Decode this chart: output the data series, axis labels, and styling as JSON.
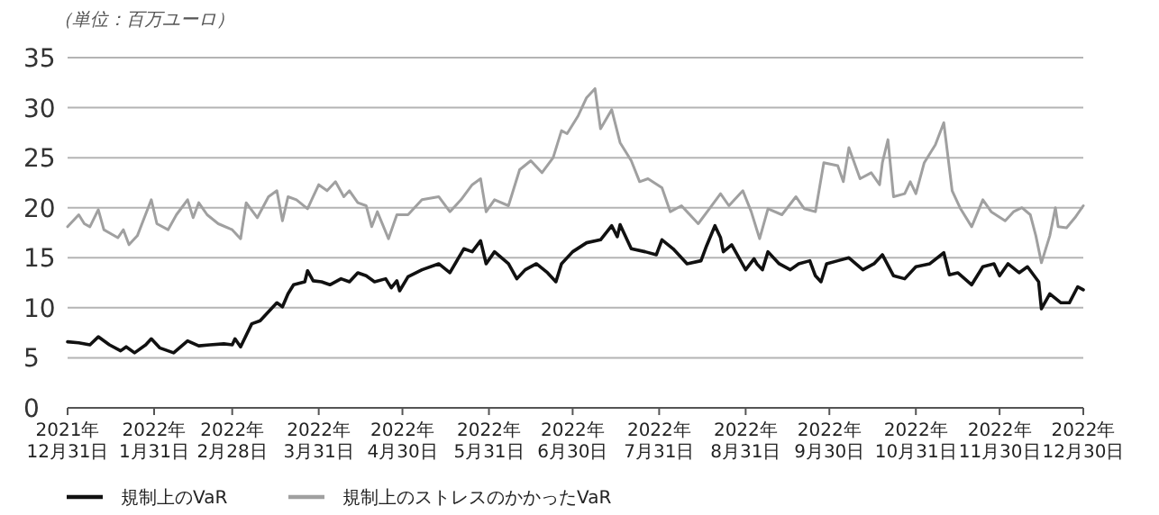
{
  "chart_data": {
    "type": "line",
    "annotations": [
      "（単位：百万ユーロ）"
    ],
    "xlim": [
      "2021-12-31",
      "2022-12-30"
    ],
    "xticks": [
      {
        "value": "2021-12-31",
        "label": "2021年\n12月31日"
      },
      {
        "value": "2022-01-31",
        "label": "2022年\n1月31日"
      },
      {
        "value": "2022-02-28",
        "label": "2022年\n2月28日"
      },
      {
        "value": "2022-03-31",
        "label": "2022年\n3月31日"
      },
      {
        "value": "2022-04-30",
        "label": "2022年\n4月30日"
      },
      {
        "value": "2022-05-31",
        "label": "2022年\n5月31日"
      },
      {
        "value": "2022-06-30",
        "label": "2022年\n6月30日"
      },
      {
        "value": "2022-07-31",
        "label": "2022年\n7月31日"
      },
      {
        "value": "2022-08-31",
        "label": "2022年\n8月31日"
      },
      {
        "value": "2022-09-30",
        "label": "2022年\n9月30日"
      },
      {
        "value": "2022-10-31",
        "label": "2022年\n10月31日"
      },
      {
        "value": "2022-11-30",
        "label": "2022年\n11月30日"
      },
      {
        "value": "2022-12-30",
        "label": "2022年\n12月30日"
      }
    ],
    "ylim": [
      0,
      35
    ],
    "yticks": [
      0,
      5,
      10,
      15,
      20,
      25,
      30,
      35
    ],
    "grid": "y",
    "legend": "bottom left",
    "series": [
      {
        "name": "規制上のVaR",
        "color": "#111111",
        "x": [
          "2021-12-31",
          "2022-01-04",
          "2022-01-08",
          "2022-01-11",
          "2022-01-15",
          "2022-01-19",
          "2022-01-21",
          "2022-01-24",
          "2022-01-28",
          "2022-01-30",
          "2022-02-02",
          "2022-02-07",
          "2022-02-12",
          "2022-02-16",
          "2022-02-20",
          "2022-02-25",
          "2022-02-28",
          "2022-03-01",
          "2022-03-03",
          "2022-03-07",
          "2022-03-10",
          "2022-03-13",
          "2022-03-16",
          "2022-03-18",
          "2022-03-20",
          "2022-03-22",
          "2022-03-26",
          "2022-03-27",
          "2022-03-29",
          "2022-04-01",
          "2022-04-04",
          "2022-04-08",
          "2022-04-11",
          "2022-04-14",
          "2022-04-17",
          "2022-04-20",
          "2022-04-24",
          "2022-04-26",
          "2022-04-28",
          "2022-04-29",
          "2022-05-02",
          "2022-05-07",
          "2022-05-13",
          "2022-05-17",
          "2022-05-22",
          "2022-05-25",
          "2022-05-28",
          "2022-05-30",
          "2022-06-02",
          "2022-06-07",
          "2022-06-10",
          "2022-06-13",
          "2022-06-17",
          "2022-06-21",
          "2022-06-24",
          "2022-06-26",
          "2022-06-30",
          "2022-07-05",
          "2022-07-10",
          "2022-07-14",
          "2022-07-16",
          "2022-07-17",
          "2022-07-21",
          "2022-07-26",
          "2022-07-30",
          "2022-08-01",
          "2022-08-05",
          "2022-08-10",
          "2022-08-15",
          "2022-08-17",
          "2022-08-20",
          "2022-08-22",
          "2022-08-23",
          "2022-08-26",
          "2022-08-31",
          "2022-09-03",
          "2022-09-04",
          "2022-09-06",
          "2022-09-08",
          "2022-09-12",
          "2022-09-16",
          "2022-09-19",
          "2022-09-23",
          "2022-09-25",
          "2022-09-27",
          "2022-09-29",
          "2022-10-03",
          "2022-10-07",
          "2022-10-12",
          "2022-10-16",
          "2022-10-19",
          "2022-10-23",
          "2022-10-27",
          "2022-10-31",
          "2022-11-05",
          "2022-11-10",
          "2022-11-12",
          "2022-11-15",
          "2022-11-20",
          "2022-11-24",
          "2022-11-28",
          "2022-11-30",
          "2022-12-03",
          "2022-12-07",
          "2022-12-10",
          "2022-12-14",
          "2022-12-15",
          "2022-12-18",
          "2022-12-22",
          "2022-12-25",
          "2022-12-28",
          "2022-12-30"
        ],
        "values": [
          6.6,
          6.5,
          6.3,
          7.1,
          6.3,
          5.7,
          6.1,
          5.5,
          6.3,
          6.9,
          6.0,
          5.5,
          6.7,
          6.2,
          6.3,
          6.4,
          6.3,
          6.9,
          6.1,
          8.4,
          8.7,
          9.6,
          10.5,
          10.1,
          11.4,
          12.3,
          12.6,
          13.7,
          12.7,
          12.6,
          12.3,
          12.9,
          12.6,
          13.5,
          13.2,
          12.6,
          12.9,
          12.0,
          12.7,
          11.7,
          13.1,
          13.8,
          14.4,
          13.5,
          15.9,
          15.6,
          16.7,
          14.4,
          15.6,
          14.4,
          12.9,
          13.8,
          14.4,
          13.5,
          12.6,
          14.4,
          15.6,
          16.5,
          16.8,
          18.2,
          17.1,
          18.3,
          15.9,
          15.6,
          15.3,
          16.8,
          15.9,
          14.4,
          14.7,
          16.2,
          18.2,
          17.0,
          15.6,
          16.3,
          13.8,
          14.9,
          14.4,
          13.8,
          15.6,
          14.4,
          13.8,
          14.4,
          14.7,
          13.2,
          12.6,
          14.4,
          14.7,
          15.0,
          13.8,
          14.4,
          15.3,
          13.2,
          12.9,
          14.1,
          14.4,
          15.5,
          13.3,
          13.5,
          12.3,
          14.1,
          14.4,
          13.2,
          14.4,
          13.5,
          14.1,
          12.6,
          9.9,
          11.4,
          10.5,
          10.5,
          12.1,
          11.8
        ]
      },
      {
        "name": "規制上のストレスのかかったVaR",
        "color": "#a0a0a0",
        "x": [
          "2021-12-31",
          "2022-01-04",
          "2022-01-06",
          "2022-01-08",
          "2022-01-11",
          "2022-01-13",
          "2022-01-18",
          "2022-01-20",
          "2022-01-22",
          "2022-01-25",
          "2022-01-30",
          "2022-02-01",
          "2022-02-05",
          "2022-02-08",
          "2022-02-12",
          "2022-02-14",
          "2022-02-16",
          "2022-02-19",
          "2022-02-23",
          "2022-02-28",
          "2022-03-03",
          "2022-03-05",
          "2022-03-09",
          "2022-03-13",
          "2022-03-16",
          "2022-03-18",
          "2022-03-20",
          "2022-03-23",
          "2022-03-27",
          "2022-03-29",
          "2022-03-31",
          "2022-04-03",
          "2022-04-06",
          "2022-04-09",
          "2022-04-11",
          "2022-04-14",
          "2022-04-17",
          "2022-04-19",
          "2022-04-21",
          "2022-04-25",
          "2022-04-28",
          "2022-05-02",
          "2022-05-07",
          "2022-05-13",
          "2022-05-17",
          "2022-05-21",
          "2022-05-25",
          "2022-05-28",
          "2022-05-30",
          "2022-06-02",
          "2022-06-07",
          "2022-06-11",
          "2022-06-15",
          "2022-06-19",
          "2022-06-23",
          "2022-06-26",
          "2022-06-28",
          "2022-07-02",
          "2022-07-05",
          "2022-07-08",
          "2022-07-10",
          "2022-07-14",
          "2022-07-17",
          "2022-07-21",
          "2022-07-24",
          "2022-07-27",
          "2022-08-01",
          "2022-08-04",
          "2022-08-08",
          "2022-08-14",
          "2022-08-18",
          "2022-08-22",
          "2022-08-25",
          "2022-08-30",
          "2022-09-02",
          "2022-09-05",
          "2022-09-08",
          "2022-09-13",
          "2022-09-18",
          "2022-09-21",
          "2022-09-25",
          "2022-09-28",
          "2022-10-03",
          "2022-10-05",
          "2022-10-07",
          "2022-10-11",
          "2022-10-15",
          "2022-10-18",
          "2022-10-19",
          "2022-10-21",
          "2022-10-23",
          "2022-10-27",
          "2022-10-29",
          "2022-10-31",
          "2022-11-03",
          "2022-11-07",
          "2022-11-10",
          "2022-11-13",
          "2022-11-16",
          "2022-11-20",
          "2022-11-24",
          "2022-11-27",
          "2022-12-02",
          "2022-12-05",
          "2022-12-08",
          "2022-12-11",
          "2022-12-13",
          "2022-12-15",
          "2022-12-18",
          "2022-12-20",
          "2022-12-21",
          "2022-12-24",
          "2022-12-27",
          "2022-12-30"
        ],
        "values": [
          18.1,
          19.3,
          18.4,
          18.1,
          19.8,
          17.8,
          17.0,
          17.8,
          16.3,
          17.2,
          20.8,
          18.4,
          17.8,
          19.3,
          20.8,
          19.0,
          20.5,
          19.3,
          18.4,
          17.8,
          16.9,
          20.5,
          19.0,
          21.1,
          21.7,
          18.7,
          21.1,
          20.8,
          19.9,
          21.1,
          22.3,
          21.7,
          22.6,
          21.1,
          21.7,
          20.5,
          20.2,
          18.1,
          19.6,
          16.9,
          19.3,
          19.3,
          20.8,
          21.1,
          19.6,
          20.8,
          22.3,
          22.9,
          19.6,
          20.8,
          20.2,
          23.8,
          24.7,
          23.5,
          25.0,
          27.7,
          27.4,
          29.2,
          31.0,
          31.9,
          27.9,
          29.8,
          26.5,
          24.7,
          22.6,
          22.9,
          22.0,
          19.6,
          20.2,
          18.4,
          19.9,
          21.4,
          20.2,
          21.7,
          19.6,
          16.9,
          19.9,
          19.3,
          21.1,
          19.9,
          19.6,
          24.5,
          24.2,
          22.6,
          26.0,
          22.9,
          23.5,
          22.3,
          24.5,
          26.8,
          21.1,
          21.4,
          22.6,
          21.4,
          24.5,
          26.3,
          28.5,
          21.7,
          19.9,
          18.1,
          20.8,
          19.6,
          18.7,
          19.6,
          20.0,
          19.3,
          17.2,
          14.5,
          17.2,
          20.0,
          18.1,
          18.0,
          19.0,
          20.2
        ]
      }
    ]
  }
}
